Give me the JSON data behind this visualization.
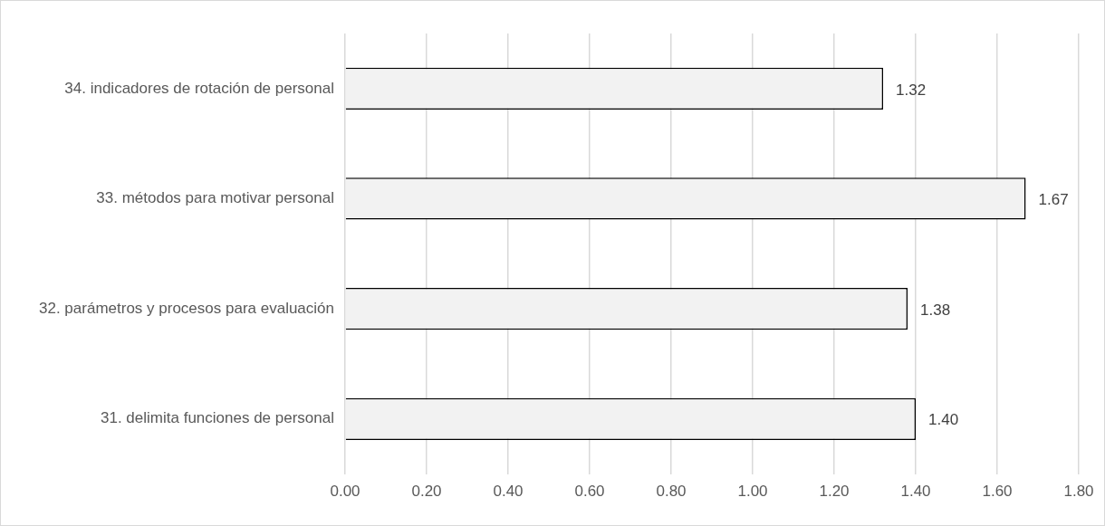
{
  "chart_data": {
    "type": "bar",
    "orientation": "horizontal",
    "categories": [
      "34. indicadores de rotación de personal",
      "33. métodos para motivar personal",
      "32. parámetros y procesos para evaluación",
      "31. delimita funciones de personal"
    ],
    "values": [
      1.32,
      1.67,
      1.38,
      1.4
    ],
    "value_labels": [
      "1.32",
      "1.67",
      "1.38",
      "1.40"
    ],
    "color": "#f2f2f2",
    "xlim": [
      0,
      1.8
    ],
    "xticks": [
      {
        "value": 0,
        "label": "0.00"
      },
      {
        "value": 0.2,
        "label": "0.20"
      },
      {
        "value": 0.4,
        "label": "0.40"
      },
      {
        "value": 0.6,
        "label": "0.60"
      },
      {
        "value": 0.8,
        "label": "0.80"
      },
      {
        "value": 1,
        "label": "1.00"
      },
      {
        "value": 1.2,
        "label": "1.20"
      },
      {
        "value": 1.4,
        "label": "1.40"
      },
      {
        "value": 1.6,
        "label": "1.60"
      },
      {
        "value": 1.8,
        "label": "1.80"
      }
    ],
    "grid": "x",
    "legend": false
  }
}
